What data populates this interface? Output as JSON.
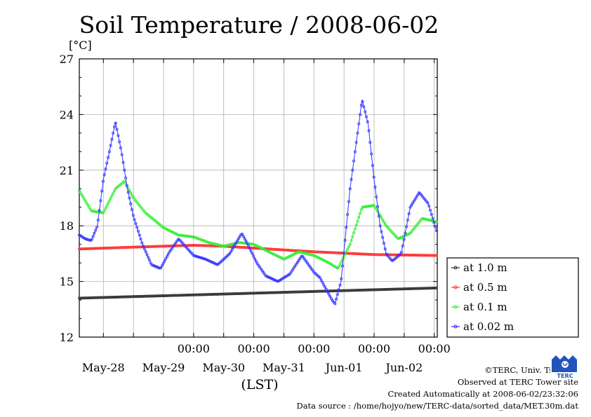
{
  "chart_data": {
    "type": "line",
    "title": "Soil Temperature / 2008-06-02",
    "ylabel": "[°C]",
    "xlabel": "(LST)",
    "ylim": [
      12,
      27
    ],
    "yticks": [
      "27",
      "24",
      "21",
      "18",
      "15",
      "12"
    ],
    "x_unit": "days since May-27 00:00 LST",
    "xlim": [
      0.1,
      6.05
    ],
    "xtick_time_labels": [
      "00:00",
      "00:00",
      "00:00",
      "00:00",
      "00:00"
    ],
    "xtick_date_labels": [
      "May-28",
      "May-29",
      "May-30",
      "May-31",
      "Jun-01",
      "Jun-02"
    ],
    "grid": true,
    "legend_position": "right",
    "series": [
      {
        "name": "at 1.0 m",
        "color": "#333333",
        "x": [
          0.1,
          6.05
        ],
        "y": [
          14.1,
          14.65
        ]
      },
      {
        "name": "at 0.5 m",
        "color": "#ff3333",
        "x": [
          0.1,
          1.0,
          2.0,
          2.5,
          3.0,
          4.0,
          5.0,
          6.05
        ],
        "y": [
          16.75,
          16.85,
          16.95,
          16.9,
          16.8,
          16.6,
          16.45,
          16.4
        ]
      },
      {
        "name": "at 0.1 m",
        "color": "#33ee33",
        "x": [
          0.1,
          0.3,
          0.5,
          0.7,
          0.85,
          1.0,
          1.2,
          1.5,
          1.75,
          2.0,
          2.25,
          2.5,
          2.75,
          3.0,
          3.25,
          3.5,
          3.75,
          4.0,
          4.25,
          4.4,
          4.6,
          4.8,
          5.0,
          5.2,
          5.4,
          5.6,
          5.8,
          6.05
        ],
        "y": [
          19.9,
          18.8,
          18.7,
          20.0,
          20.4,
          19.5,
          18.7,
          17.9,
          17.5,
          17.4,
          17.1,
          16.9,
          17.1,
          17.0,
          16.6,
          16.2,
          16.6,
          16.4,
          16.0,
          15.7,
          17.0,
          19.0,
          19.1,
          18.0,
          17.3,
          17.6,
          18.4,
          18.2
        ]
      },
      {
        "name": "at 0.02 m",
        "color": "#3333ff",
        "x": [
          0.1,
          0.2,
          0.3,
          0.4,
          0.5,
          0.6,
          0.7,
          0.8,
          0.9,
          1.0,
          1.15,
          1.3,
          1.45,
          1.6,
          1.75,
          2.0,
          2.2,
          2.4,
          2.6,
          2.8,
          2.9,
          3.05,
          3.2,
          3.4,
          3.6,
          3.8,
          4.0,
          4.1,
          4.3,
          4.35,
          4.45,
          4.6,
          4.8,
          4.9,
          5.0,
          5.1,
          5.2,
          5.3,
          5.45,
          5.6,
          5.75,
          5.9,
          6.05
        ],
        "y": [
          17.5,
          17.3,
          17.2,
          18.0,
          20.5,
          22.0,
          23.6,
          22.0,
          20.0,
          18.5,
          17.0,
          15.9,
          15.7,
          16.6,
          17.3,
          16.4,
          16.2,
          15.9,
          16.5,
          17.6,
          17.0,
          16.0,
          15.3,
          15.0,
          15.4,
          16.4,
          15.5,
          15.2,
          14.0,
          13.8,
          15.0,
          20.0,
          24.8,
          23.5,
          20.5,
          18.0,
          16.5,
          16.1,
          16.5,
          19.0,
          19.8,
          19.2,
          17.6
        ]
      }
    ]
  },
  "credits": {
    "copyright": "©TERC, Univ. Tsukuba",
    "observed": "Observed at TERC Tower site",
    "created": "Created Automatically at 2008-06-02/23:32:06",
    "source": "Data source : /home/hojyo/new/TERC-data/sorted_data/MET.30m.dat"
  },
  "logo_text": "TERC",
  "logo_color": "#2255bb"
}
